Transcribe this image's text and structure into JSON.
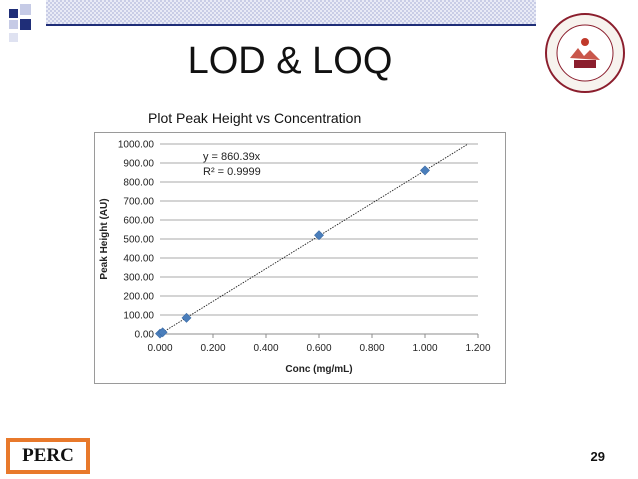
{
  "slide": {
    "title": "LOD & LOQ",
    "subtitle": "Plot Peak Height vs Concentration",
    "page_number": "29",
    "logo_text": "PERC",
    "seal_text": "CAMPBELL UNIVERSITY PHARMACEUTICAL SCIENCES"
  },
  "colors": {
    "accent_orange": "#e8792b",
    "accent_navy": "#1f2e78",
    "marker": "#4a7ebb"
  },
  "chart_data": {
    "type": "scatter",
    "xlabel": "Conc (mg/mL)",
    "ylabel": "Peak Height (AU)",
    "xlim": [
      0,
      1.2
    ],
    "ylim": [
      0,
      1000
    ],
    "x_ticks": [
      "0.000",
      "0.200",
      "0.400",
      "0.600",
      "0.800",
      "1.000",
      "1.200"
    ],
    "y_ticks": [
      "0.00",
      "100.00",
      "200.00",
      "300.00",
      "400.00",
      "500.00",
      "600.00",
      "700.00",
      "800.00",
      "900.00",
      "1000.00"
    ],
    "grid": "horizontal",
    "series": [
      {
        "points": [
          {
            "x": 0.0,
            "y": 2
          },
          {
            "x": 0.01,
            "y": 9
          },
          {
            "x": 0.1,
            "y": 85
          },
          {
            "x": 0.6,
            "y": 520
          },
          {
            "x": 1.0,
            "y": 861
          }
        ]
      }
    ],
    "trendline": {
      "slope": 860.39,
      "intercept": 0
    },
    "annotations": [
      "y = 860.39x",
      "R² = 0.9999"
    ]
  }
}
